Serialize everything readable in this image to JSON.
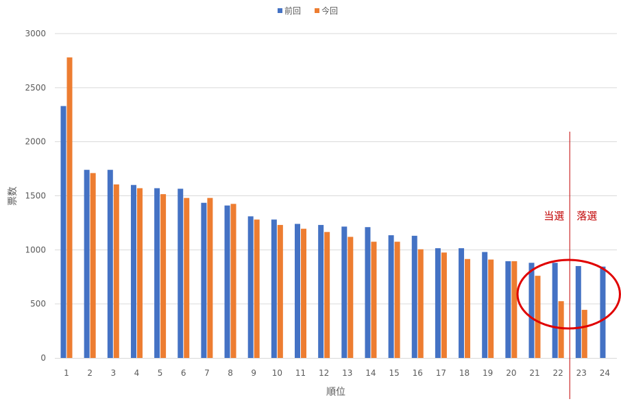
{
  "chart_data": {
    "type": "bar",
    "xlabel": "順位",
    "ylabel": "票数",
    "ylim": [
      0,
      3000
    ],
    "yticks": [
      0,
      500,
      1000,
      1500,
      2000,
      2500,
      3000
    ],
    "grid": true,
    "legend_position": "top-center",
    "categories": [
      "1",
      "2",
      "3",
      "4",
      "5",
      "6",
      "7",
      "8",
      "9",
      "10",
      "11",
      "12",
      "13",
      "14",
      "15",
      "16",
      "17",
      "18",
      "19",
      "20",
      "21",
      "22",
      "23",
      "24"
    ],
    "series": [
      {
        "name": "前回",
        "color": "#4472C4",
        "values": [
          2330,
          1740,
          1740,
          1600,
          1570,
          1565,
          1435,
          1410,
          1310,
          1280,
          1240,
          1230,
          1215,
          1210,
          1135,
          1130,
          1015,
          1015,
          980,
          895,
          880,
          880,
          850,
          845
        ]
      },
      {
        "name": "今回",
        "color": "#ED7D31",
        "values": [
          2780,
          1710,
          1605,
          1570,
          1515,
          1480,
          1480,
          1425,
          1280,
          1230,
          1195,
          1165,
          1120,
          1075,
          1075,
          1005,
          975,
          915,
          910,
          895,
          760,
          525,
          445,
          null
        ]
      }
    ],
    "annotations": {
      "elected_label": "当選",
      "defeated_label": "落選",
      "annotation_color": "#C00000",
      "cutoff_after_category": "22",
      "highlight_categories": [
        "21",
        "22",
        "23",
        "24"
      ]
    }
  }
}
